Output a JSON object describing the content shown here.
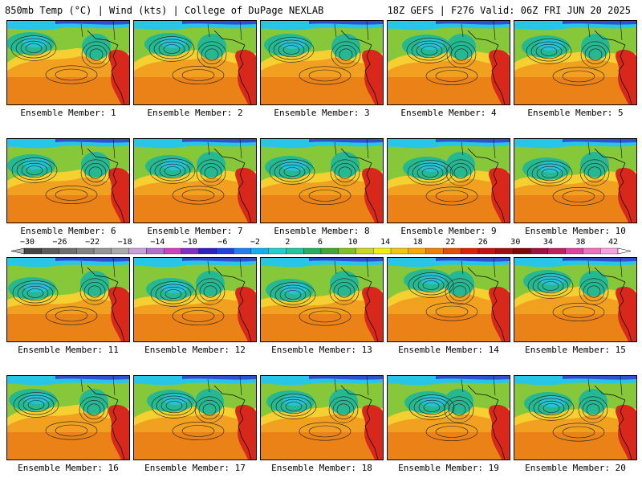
{
  "header": {
    "left_title": "850mb Temp (°C) | Wind (kts) | College of DuPage NEXLAB",
    "right_title": "18Z GEFS | F276 Valid: 06Z FRI JUN 20 2025"
  },
  "panels": [
    {
      "label": "Ensemble Member: 1"
    },
    {
      "label": "Ensemble Member: 2"
    },
    {
      "label": "Ensemble Member: 3"
    },
    {
      "label": "Ensemble Member: 4"
    },
    {
      "label": "Ensemble Member: 5"
    },
    {
      "label": "Ensemble Member: 6"
    },
    {
      "label": "Ensemble Member: 7"
    },
    {
      "label": "Ensemble Member: 8"
    },
    {
      "label": "Ensemble Member: 9"
    },
    {
      "label": "Ensemble Member: 10"
    },
    {
      "label": "Ensemble Member: 11"
    },
    {
      "label": "Ensemble Member: 12"
    },
    {
      "label": "Ensemble Member: 13"
    },
    {
      "label": "Ensemble Member: 14"
    },
    {
      "label": "Ensemble Member: 15"
    },
    {
      "label": "Ensemble Member: 16"
    },
    {
      "label": "Ensemble Member: 17"
    },
    {
      "label": "Ensemble Member: 18"
    },
    {
      "label": "Ensemble Member: 19"
    },
    {
      "label": "Ensemble Member: 20"
    }
  ],
  "colorbar": {
    "labels": [
      "−30",
      "−26",
      "−22",
      "−18",
      "−14",
      "−10",
      "−6",
      "−2",
      "2",
      "6",
      "10",
      "14",
      "18",
      "22",
      "26",
      "30",
      "34",
      "38",
      "42"
    ],
    "colors": [
      "#444444",
      "#5a5a5a",
      "#6e6e6e",
      "#828282",
      "#969696",
      "#aaaaaa",
      "#c8a0d8",
      "#b070d0",
      "#d040c0",
      "#8030c0",
      "#3020c0",
      "#2040e0",
      "#2080f0",
      "#10b0f0",
      "#20d0d0",
      "#20c8a0",
      "#20b060",
      "#40a830",
      "#80c020",
      "#c8d820",
      "#f0f000",
      "#f0c800",
      "#f8a800",
      "#f08000",
      "#e05000",
      "#e02000",
      "#c81010",
      "#a01010",
      "#800808",
      "#a01040",
      "#c02060",
      "#e040a0",
      "#f070c0",
      "#f8a0e0"
    ]
  },
  "map_colors": {
    "warm": "#f2a020",
    "warmer": "#e56a10",
    "hot": "#d8281c",
    "mild": "#f6d030",
    "cool": "#86c83a",
    "cold": "#26b890",
    "colder": "#28c6e6"
  }
}
